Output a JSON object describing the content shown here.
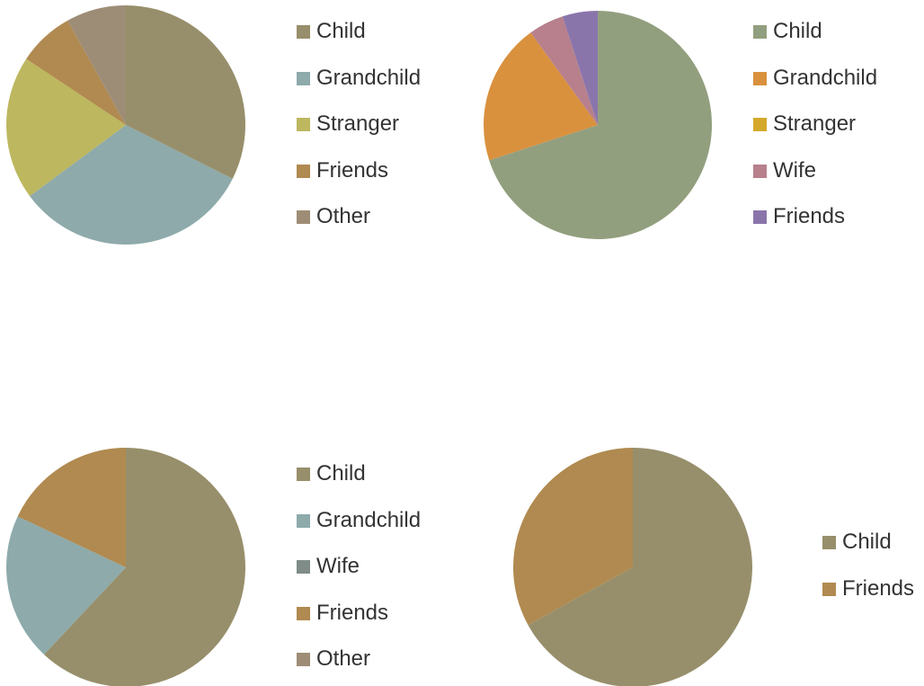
{
  "chart_data": [
    {
      "type": "pie",
      "title": "",
      "legend_position": "right",
      "series": [
        {
          "name": "",
          "values": [
            30,
            30,
            18,
            7,
            7.5
          ]
        }
      ],
      "categories": [
        "Child",
        "Grandchild",
        "Stranger",
        "Friends",
        "Other"
      ],
      "colors": [
        "#978f6b",
        "#8eaaaa",
        "#bdb760",
        "#b08a50",
        "#9e8d76"
      ]
    },
    {
      "type": "pie",
      "title": "",
      "legend_position": "right",
      "series": [
        {
          "name": "",
          "values": [
            70,
            20,
            0,
            5,
            5
          ]
        }
      ],
      "categories": [
        "Child",
        "Grandchild",
        "Stranger",
        "Wife",
        "Friends"
      ],
      "colors": [
        "#929f7e",
        "#d9913e",
        "#d4a82b",
        "#b7808c",
        "#8a75ab"
      ]
    },
    {
      "type": "pie",
      "title": "",
      "legend_position": "right",
      "series": [
        {
          "name": "",
          "values": [
            62,
            20,
            0,
            18,
            0
          ]
        }
      ],
      "categories": [
        "Child",
        "Grandchild",
        "Wife",
        "Friends",
        "Other"
      ],
      "colors": [
        "#978f6b",
        "#8eaaaa",
        "#7f8c87",
        "#b08a50",
        "#9e8d76"
      ]
    },
    {
      "type": "pie",
      "title": "",
      "legend_position": "right",
      "series": [
        {
          "name": "",
          "values": [
            67,
            33
          ]
        }
      ],
      "categories": [
        "Child",
        "Friends"
      ],
      "colors": [
        "#978f6b",
        "#b08a50"
      ]
    }
  ]
}
